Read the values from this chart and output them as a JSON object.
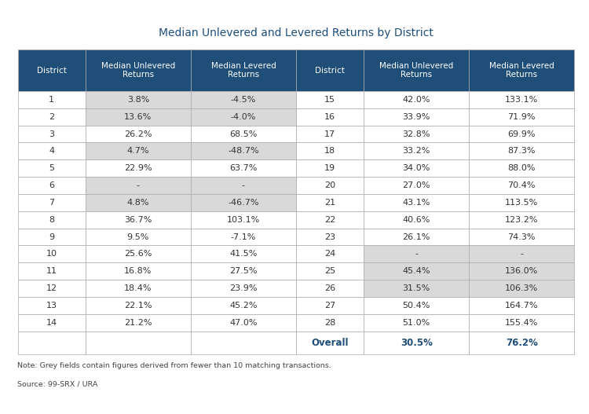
{
  "title": "Median Unlevered and Levered Returns by District",
  "header_bg": "#1F4E79",
  "header_text_color": "#FFFFFF",
  "row_bg_white": "#FFFFFF",
  "row_bg_grey": "#D9D9D9",
  "border_color": "#AAAAAA",
  "overall_text_color": "#1F4E79",
  "note1": "Note: Grey fields contain figures derived from fewer than 10 matching transactions.",
  "note2": "Source: 99-SRX / URA",
  "col_headers": [
    "District",
    "Median Unlevered\nReturns",
    "Median Levered\nReturns"
  ],
  "left_table": [
    {
      "district": "1",
      "unlevered": "3.8%",
      "levered": "-4.5%",
      "grey_unlevered": true,
      "grey_levered": true
    },
    {
      "district": "2",
      "unlevered": "13.6%",
      "levered": "-4.0%",
      "grey_unlevered": true,
      "grey_levered": true
    },
    {
      "district": "3",
      "unlevered": "26.2%",
      "levered": "68.5%",
      "grey_unlevered": false,
      "grey_levered": false
    },
    {
      "district": "4",
      "unlevered": "4.7%",
      "levered": "-48.7%",
      "grey_unlevered": true,
      "grey_levered": true
    },
    {
      "district": "5",
      "unlevered": "22.9%",
      "levered": "63.7%",
      "grey_unlevered": false,
      "grey_levered": false
    },
    {
      "district": "6",
      "unlevered": "-",
      "levered": "-",
      "grey_unlevered": true,
      "grey_levered": true
    },
    {
      "district": "7",
      "unlevered": "4.8%",
      "levered": "-46.7%",
      "grey_unlevered": true,
      "grey_levered": true
    },
    {
      "district": "8",
      "unlevered": "36.7%",
      "levered": "103.1%",
      "grey_unlevered": false,
      "grey_levered": false
    },
    {
      "district": "9",
      "unlevered": "9.5%",
      "levered": "-7.1%",
      "grey_unlevered": false,
      "grey_levered": false
    },
    {
      "district": "10",
      "unlevered": "25.6%",
      "levered": "41.5%",
      "grey_unlevered": false,
      "grey_levered": false
    },
    {
      "district": "11",
      "unlevered": "16.8%",
      "levered": "27.5%",
      "grey_unlevered": false,
      "grey_levered": false
    },
    {
      "district": "12",
      "unlevered": "18.4%",
      "levered": "23.9%",
      "grey_unlevered": false,
      "grey_levered": false
    },
    {
      "district": "13",
      "unlevered": "22.1%",
      "levered": "45.2%",
      "grey_unlevered": false,
      "grey_levered": false
    },
    {
      "district": "14",
      "unlevered": "21.2%",
      "levered": "47.0%",
      "grey_unlevered": false,
      "grey_levered": false
    }
  ],
  "right_table": [
    {
      "district": "15",
      "unlevered": "42.0%",
      "levered": "133.1%",
      "grey_unlevered": false,
      "grey_levered": false
    },
    {
      "district": "16",
      "unlevered": "33.9%",
      "levered": "71.9%",
      "grey_unlevered": false,
      "grey_levered": false
    },
    {
      "district": "17",
      "unlevered": "32.8%",
      "levered": "69.9%",
      "grey_unlevered": false,
      "grey_levered": false
    },
    {
      "district": "18",
      "unlevered": "33.2%",
      "levered": "87.3%",
      "grey_unlevered": false,
      "grey_levered": false
    },
    {
      "district": "19",
      "unlevered": "34.0%",
      "levered": "88.0%",
      "grey_unlevered": false,
      "grey_levered": false
    },
    {
      "district": "20",
      "unlevered": "27.0%",
      "levered": "70.4%",
      "grey_unlevered": false,
      "grey_levered": false
    },
    {
      "district": "21",
      "unlevered": "43.1%",
      "levered": "113.5%",
      "grey_unlevered": false,
      "grey_levered": false
    },
    {
      "district": "22",
      "unlevered": "40.6%",
      "levered": "123.2%",
      "grey_unlevered": false,
      "grey_levered": false
    },
    {
      "district": "23",
      "unlevered": "26.1%",
      "levered": "74.3%",
      "grey_unlevered": false,
      "grey_levered": false
    },
    {
      "district": "24",
      "unlevered": "-",
      "levered": "-",
      "grey_unlevered": true,
      "grey_levered": true
    },
    {
      "district": "25",
      "unlevered": "45.4%",
      "levered": "136.0%",
      "grey_unlevered": true,
      "grey_levered": true
    },
    {
      "district": "26",
      "unlevered": "31.5%",
      "levered": "106.3%",
      "grey_unlevered": true,
      "grey_levered": true
    },
    {
      "district": "27",
      "unlevered": "50.4%",
      "levered": "164.7%",
      "grey_unlevered": false,
      "grey_levered": false
    },
    {
      "district": "28",
      "unlevered": "51.0%",
      "levered": "155.4%",
      "grey_unlevered": false,
      "grey_levered": false
    }
  ],
  "overall": {
    "district": "Overall",
    "unlevered": "30.5%",
    "levered": "76.2%"
  }
}
